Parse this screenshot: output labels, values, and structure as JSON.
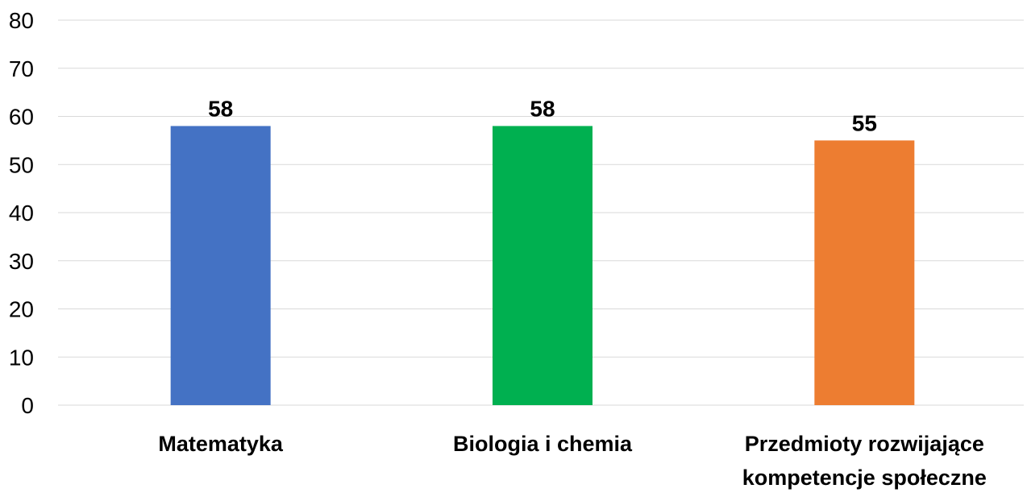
{
  "chart_data": {
    "type": "bar",
    "title": "",
    "xlabel": "",
    "ylabel": "",
    "categories": [
      "Matematyka",
      "Biologia i chemia",
      "Przedmioty rozwijające kompetencje społeczne"
    ],
    "category_lines": [
      [
        "Matematyka"
      ],
      [
        "Biologia i chemia"
      ],
      [
        "Przedmioty rozwijające",
        "kompetencje społeczne"
      ]
    ],
    "values": [
      58,
      58,
      55
    ],
    "colors": [
      "#4472C4",
      "#00B050",
      "#ED7D31"
    ],
    "ylim": [
      0,
      80
    ],
    "yticks": [
      0,
      10,
      20,
      30,
      40,
      50,
      60,
      70,
      80
    ],
    "grid": true,
    "legend": "none",
    "data_labels": true
  }
}
